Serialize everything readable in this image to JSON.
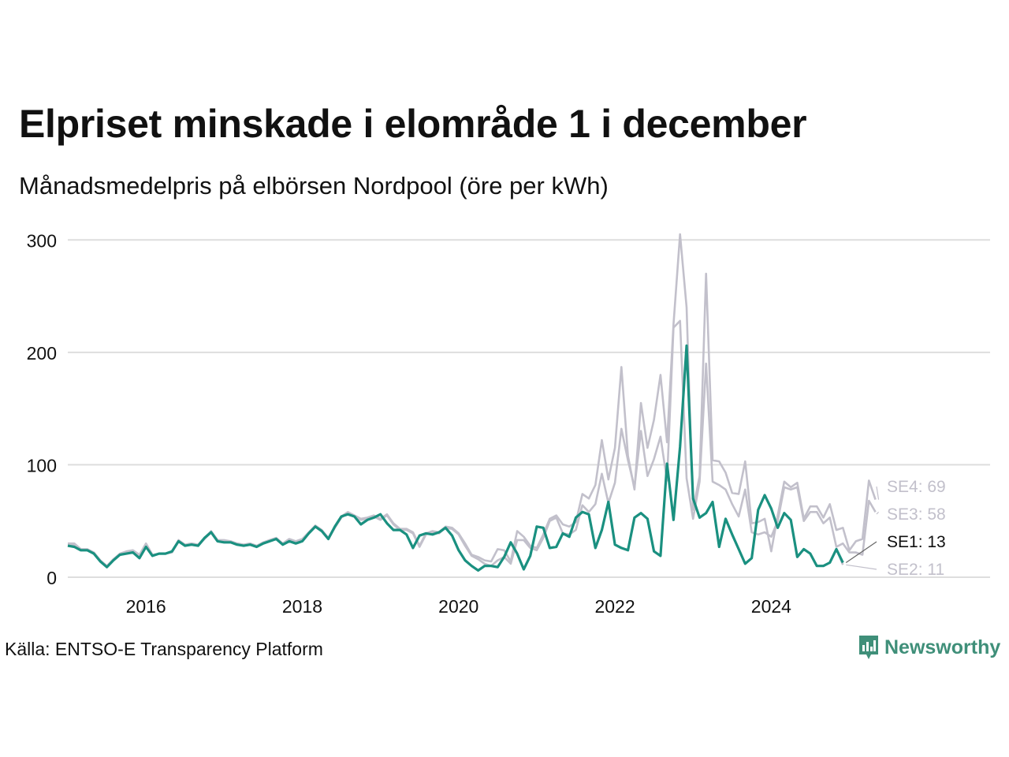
{
  "title": "Elpriset minskade i elområde 1 i december",
  "subtitle": "Månadsmedelpris på elbörsen Nordpool (öre per kWh)",
  "source": "Källa: ENTSO-E Transparency Platform",
  "brand": "Newsworthy",
  "colors": {
    "highlight": "#1a9080",
    "muted": "#c2c0cb",
    "grid": "#dedede",
    "brand": "#3f8f79"
  },
  "chart_data": {
    "type": "line",
    "x_start": 2015,
    "x_step": 0.0833333,
    "xlim": [
      2015,
      2026.8
    ],
    "ylim": [
      0,
      310
    ],
    "yticks": [
      0,
      100,
      200,
      300
    ],
    "xticks": [
      2016,
      2018,
      2020,
      2022,
      2024
    ],
    "grid": true,
    "series": [
      {
        "name": "SE4",
        "end_label": "SE4: 69",
        "highlight": false,
        "values": [
          30,
          30,
          25,
          25,
          22,
          15,
          10,
          16,
          21,
          23,
          24,
          20,
          30,
          20,
          21,
          21,
          23,
          33,
          29,
          30,
          29,
          35,
          41,
          33,
          33,
          32,
          30,
          29,
          30,
          28,
          31,
          33,
          35,
          30,
          34,
          32,
          34,
          40,
          46,
          42,
          35,
          45,
          54,
          58,
          55,
          52,
          53,
          55,
          52,
          56,
          48,
          43,
          43,
          40,
          28,
          39,
          41,
          40,
          45,
          44,
          39,
          30,
          20,
          18,
          15,
          14,
          25,
          24,
          14,
          41,
          36,
          28,
          26,
          38,
          52,
          55,
          47,
          45,
          49,
          74,
          70,
          82,
          122,
          87,
          115,
          187,
          108,
          78,
          155,
          115,
          140,
          180,
          120,
          225,
          305,
          240,
          60,
          90,
          270,
          104,
          103,
          93,
          75,
          74,
          103,
          48,
          49,
          52,
          23,
          55,
          85,
          80,
          84,
          52,
          63,
          63,
          53,
          65,
          42,
          44,
          24,
          32,
          34,
          86,
          69
        ]
      },
      {
        "name": "SE3",
        "end_label": "SE3: 58",
        "highlight": false,
        "values": [
          29,
          29,
          24,
          24,
          21,
          14,
          9,
          15,
          21,
          22,
          23,
          18,
          29,
          19,
          21,
          21,
          22,
          32,
          28,
          29,
          28,
          34,
          40,
          32,
          32,
          31,
          29,
          28,
          29,
          27,
          30,
          32,
          34,
          29,
          33,
          31,
          33,
          39,
          45,
          41,
          34,
          44,
          53,
          57,
          54,
          51,
          52,
          54,
          51,
          55,
          47,
          42,
          42,
          39,
          27,
          38,
          40,
          39,
          44,
          43,
          38,
          28,
          19,
          16,
          12,
          10,
          15,
          18,
          12,
          33,
          33,
          26,
          24,
          35,
          50,
          53,
          39,
          38,
          42,
          64,
          58,
          65,
          92,
          66,
          84,
          132,
          104,
          80,
          130,
          90,
          105,
          125,
          86,
          222,
          228,
          88,
          52,
          85,
          190,
          85,
          82,
          78,
          65,
          54,
          78,
          40,
          38,
          40,
          36,
          50,
          80,
          78,
          80,
          50,
          58,
          58,
          48,
          53,
          27,
          30,
          22,
          22,
          20,
          68,
          58
        ]
      },
      {
        "name": "SE1",
        "end_label": "SE1: 13",
        "highlight": true,
        "values": [
          28,
          27,
          24,
          24,
          21,
          14,
          9,
          15,
          20,
          21,
          22,
          17,
          27,
          19,
          21,
          21,
          23,
          32,
          28,
          29,
          28,
          35,
          40,
          32,
          31,
          31,
          29,
          28,
          29,
          27,
          30,
          32,
          34,
          29,
          32,
          30,
          32,
          39,
          45,
          41,
          34,
          45,
          54,
          56,
          54,
          47,
          51,
          53,
          56,
          48,
          42,
          42,
          38,
          26,
          37,
          39,
          38,
          40,
          44,
          37,
          24,
          15,
          10,
          6,
          10,
          10,
          9,
          18,
          31,
          21,
          7,
          19,
          45,
          44,
          26,
          27,
          39,
          36,
          53,
          58,
          56,
          26,
          42,
          67,
          29,
          26,
          24,
          53,
          57,
          52,
          23,
          19,
          101,
          51,
          116,
          206,
          70,
          53,
          57,
          67,
          27,
          52,
          38,
          25,
          12,
          17,
          60,
          73,
          61,
          44,
          57,
          51,
          18,
          25,
          21,
          10,
          10,
          13,
          25,
          13
        ]
      },
      {
        "name": "SE2",
        "end_label": "SE2: 11",
        "highlight": false,
        "values": [
          28,
          27,
          24,
          24,
          21,
          14,
          9,
          15,
          20,
          21,
          22,
          17,
          27,
          19,
          21,
          21,
          23,
          32,
          28,
          29,
          28,
          35,
          40,
          32,
          31,
          31,
          29,
          28,
          29,
          27,
          30,
          32,
          34,
          29,
          32,
          30,
          32,
          39,
          45,
          41,
          34,
          45,
          54,
          56,
          54,
          47,
          51,
          53,
          56,
          48,
          42,
          42,
          38,
          26,
          37,
          39,
          38,
          40,
          44,
          37,
          24,
          15,
          10,
          6,
          10,
          10,
          9,
          18,
          31,
          21,
          7,
          19,
          45,
          44,
          26,
          27,
          39,
          36,
          53,
          58,
          56,
          26,
          42,
          67,
          29,
          26,
          24,
          53,
          57,
          52,
          23,
          19,
          101,
          51,
          116,
          206,
          70,
          53,
          57,
          67,
          27,
          52,
          38,
          25,
          12,
          17,
          60,
          73,
          61,
          44,
          57,
          51,
          18,
          25,
          21,
          10,
          10,
          13,
          25,
          11
        ]
      }
    ]
  }
}
